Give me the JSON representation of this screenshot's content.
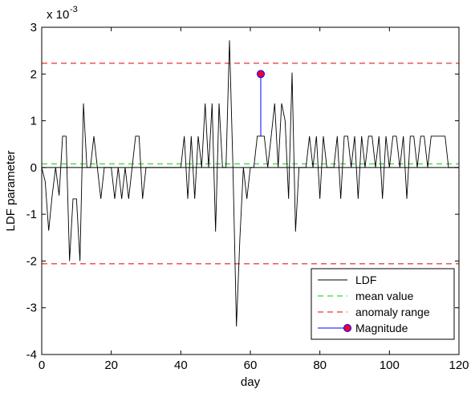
{
  "chart_data": {
    "type": "line",
    "title": "",
    "xlabel": "day",
    "ylabel": "LDF parameter",
    "y_exponent_label": "x 10",
    "y_exponent_power": "-3",
    "xlim": [
      0,
      120
    ],
    "ylim": [
      -4,
      3
    ],
    "x_ticks": [
      0,
      20,
      40,
      60,
      80,
      100,
      120
    ],
    "x_tick_labels": [
      "0",
      "20",
      "40",
      "60",
      "80",
      "100",
      "120"
    ],
    "y_ticks": [
      -4,
      -3,
      -2,
      -1,
      0,
      1,
      2,
      3
    ],
    "y_tick_labels": [
      "-4",
      "-3",
      "-2",
      "-1",
      "0",
      "1",
      "2",
      "3"
    ],
    "grid": false,
    "legend_position": "bottom-right",
    "series": [
      {
        "name": "LDF",
        "color": "#000000",
        "style": "solid",
        "x": [
          0,
          1,
          2,
          3,
          4,
          5,
          6,
          7,
          8,
          9,
          10,
          11,
          12,
          13,
          14,
          15,
          16,
          17,
          18,
          19,
          20,
          21,
          22,
          23,
          24,
          25,
          26,
          27,
          28,
          29,
          30,
          31,
          32,
          33,
          34,
          35,
          36,
          37,
          38,
          39,
          40,
          41,
          42,
          43,
          44,
          45,
          46,
          47,
          48,
          49,
          50,
          51,
          52,
          53,
          54,
          55,
          56,
          57,
          58,
          59,
          60,
          61,
          62,
          63,
          64,
          65,
          66,
          67,
          68,
          69,
          70,
          71,
          72,
          73,
          74,
          75,
          76,
          77,
          78,
          79,
          80,
          81,
          82,
          83,
          84,
          85,
          86,
          87,
          88,
          89,
          90,
          91,
          92,
          93,
          94,
          95,
          96,
          97,
          98,
          99,
          100,
          101,
          102,
          103,
          104,
          105,
          106,
          107,
          108,
          109,
          110,
          111,
          112,
          113,
          114,
          115,
          116,
          117,
          118,
          119,
          120
        ],
        "y": [
          0,
          -0.3,
          -1.35,
          -0.6,
          0,
          -0.6,
          0.67,
          0.67,
          -2.0,
          -0.67,
          -0.67,
          -2.0,
          1.37,
          0,
          0,
          0.67,
          0,
          -0.67,
          0,
          0,
          0,
          -0.67,
          0,
          -0.67,
          0,
          -0.67,
          0,
          0.67,
          0.67,
          -0.67,
          0,
          0,
          0,
          0,
          0,
          0,
          0,
          0,
          0,
          0,
          0,
          0.67,
          -0.67,
          0.67,
          -0.67,
          0.67,
          0,
          1.37,
          0,
          1.37,
          -1.37,
          1.37,
          0,
          0,
          2.72,
          0,
          -3.4,
          -1.5,
          0,
          -0.67,
          0,
          0,
          0.67,
          0.67,
          0.67,
          0,
          0.67,
          1.37,
          0,
          1.37,
          1.0,
          -0.67,
          2.03,
          -1.37,
          0,
          0,
          0,
          0.67,
          0,
          0.67,
          -0.67,
          0.67,
          0,
          0,
          0,
          0.67,
          -0.67,
          0.67,
          0.67,
          0,
          0.67,
          -0.67,
          0.67,
          0,
          0.67,
          0.67,
          0,
          0.67,
          -0.67,
          0.67,
          0,
          0.67,
          0.67,
          0,
          0.67,
          -0.67,
          0.67,
          0.67,
          0,
          0.67,
          0.67,
          0,
          0.67,
          0.67,
          0.67,
          0.67,
          0.67,
          0,
          0,
          0,
          0
        ]
      },
      {
        "name": "mean value",
        "color": "#00cc00",
        "style": "dashed",
        "x": [
          0,
          120
        ],
        "y": [
          0.08,
          0.08
        ]
      },
      {
        "name": "anomaly range",
        "color": "#dd0000",
        "style": "dashed",
        "x": [
          0,
          120
        ],
        "y": [
          2.23,
          2.23
        ]
      },
      {
        "name": "anomaly range lower",
        "color": "#dd0000",
        "style": "dashed",
        "x": [
          0,
          120
        ],
        "y": [
          -2.06,
          -2.06
        ]
      },
      {
        "name": "Magnitude",
        "color": "#0000ff",
        "marker_color": "#ee0033",
        "style": "stem",
        "x": [
          63
        ],
        "y": [
          2.0
        ],
        "base": 0.67
      }
    ],
    "legend_entries": [
      "LDF",
      "mean value",
      "anomaly range",
      "Magnitude"
    ]
  }
}
